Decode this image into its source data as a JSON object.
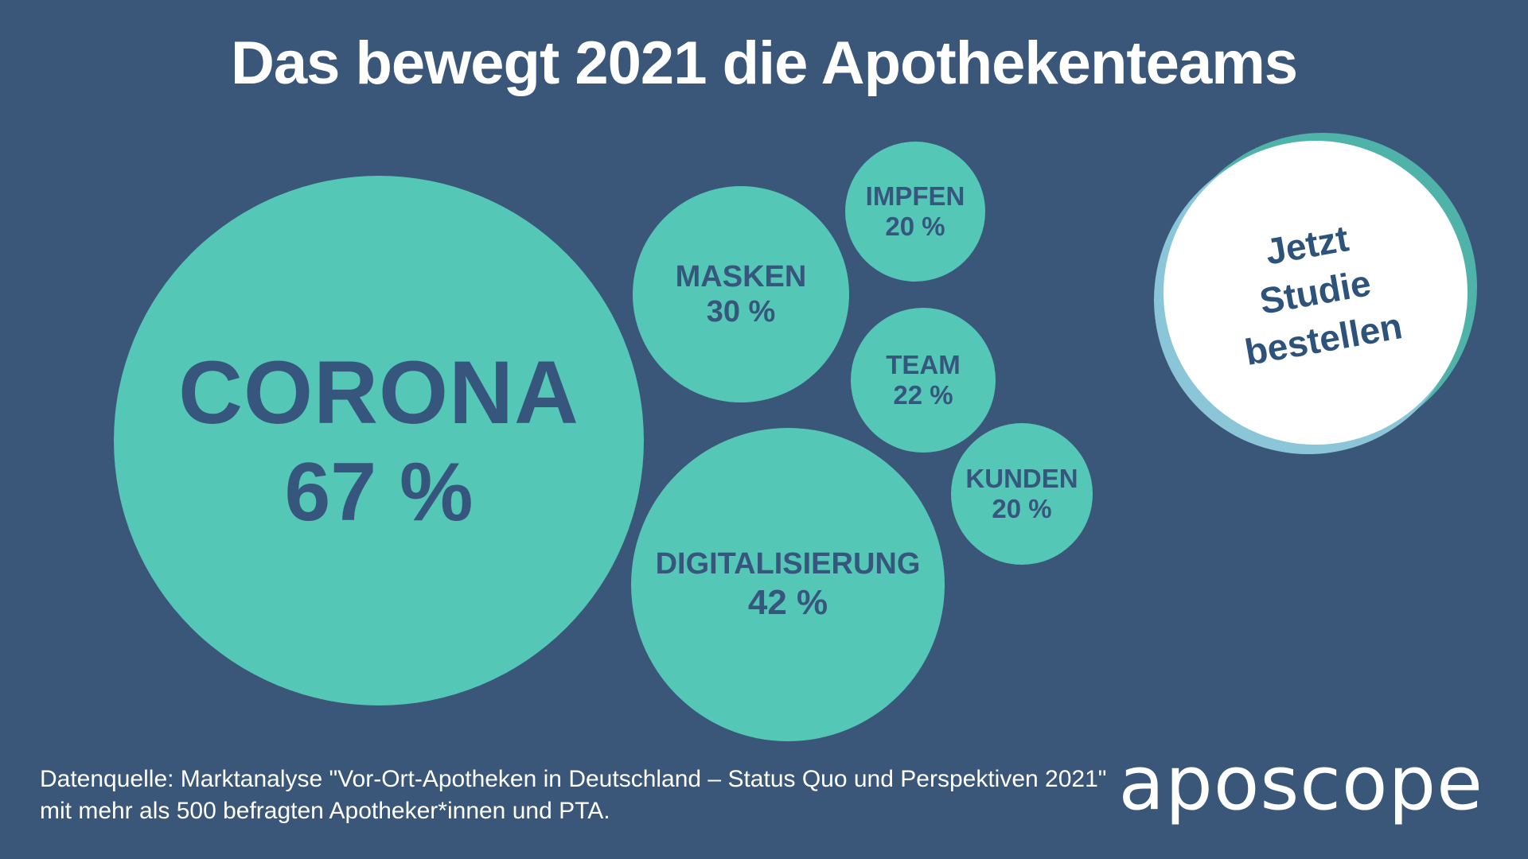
{
  "header": {
    "title": "Das bewegt 2021 die Apothekenteams"
  },
  "chart_data": {
    "type": "bubble",
    "title": "Das bewegt 2021 die Apothekenteams",
    "unit": "%",
    "categories": [
      "Corona",
      "Digitalisierung",
      "Masken",
      "Team",
      "Impfen",
      "Kunden"
    ],
    "values": [
      67,
      42,
      30,
      22,
      20,
      20
    ],
    "layout_hint": "bubble area proportional to value; largest bubble left, smaller bubbles clustered right"
  },
  "bubbles": [
    {
      "label": "CORONA",
      "value": 67,
      "value_display": "67 %"
    },
    {
      "label": "MASKEN",
      "value": 30,
      "value_display": "30 %"
    },
    {
      "label": "IMPFEN",
      "value": 20,
      "value_display": "20 %"
    },
    {
      "label": "TEAM",
      "value": 22,
      "value_display": "22 %"
    },
    {
      "label": "KUNDEN",
      "value": 20,
      "value_display": "20 %"
    },
    {
      "label": "DIGITALISIERUNG",
      "value": 42,
      "value_display": "42 %"
    }
  ],
  "badge": {
    "line1": "Jetzt",
    "line2": "Studie",
    "line3": "bestellen"
  },
  "footer": {
    "source_line1": "Datenquelle: Marktanalyse \"Vor-Ort-Apotheken in Deutschland – Status Quo und Perspektiven 2021\"",
    "source_line2": "mit mehr als 500 befragten Apotheker*innen und PTA."
  },
  "brand": {
    "logo_text": "aposcope"
  },
  "colors": {
    "background": "#3A5679",
    "bubble": "#55C7B6",
    "bubble-text": "#37567D",
    "title-text": "#FFFFFF",
    "badge-face": "#FFFFFF",
    "badge-text": "#2E537A",
    "badge-ring-teal": "#4FB3A9",
    "badge-ring-blue": "#8AC6D8"
  }
}
